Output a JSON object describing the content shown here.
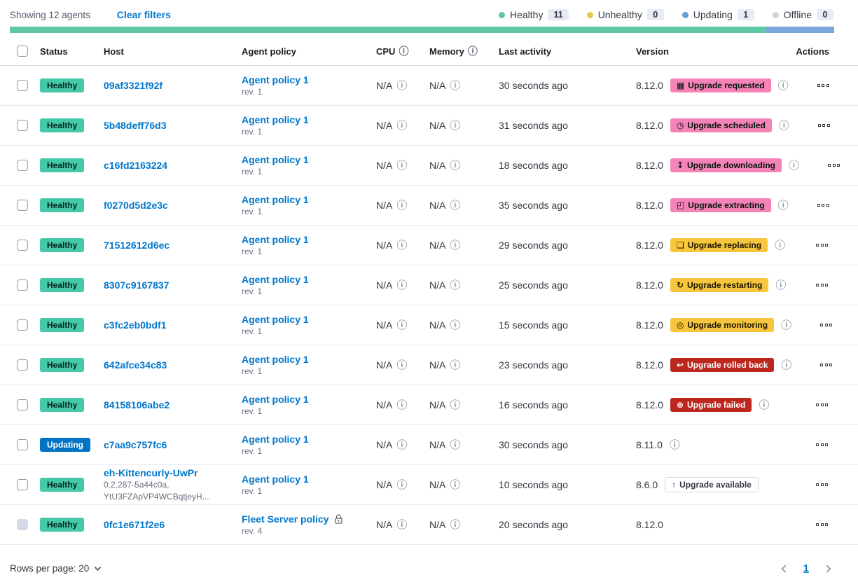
{
  "toolbar": {
    "showing": "Showing 12 agents",
    "clear_filters": "Clear filters"
  },
  "legend": [
    {
      "label": "Healthy",
      "count": "11",
      "color": "#5BC9A4"
    },
    {
      "label": "Unhealthy",
      "count": "0",
      "color": "#E8C84C"
    },
    {
      "label": "Updating",
      "count": "1",
      "color": "#609FD8"
    },
    {
      "label": "Offline",
      "count": "0",
      "color": "#CBD3DF"
    }
  ],
  "health_bar": {
    "segments": [
      {
        "name": "healthy",
        "color": "#5EC9A4",
        "fraction": 0.9167
      },
      {
        "name": "updating",
        "color": "#79A8D8",
        "fraction": 0.0833
      }
    ]
  },
  "table": {
    "headers": [
      {
        "label": "Status"
      },
      {
        "label": "Host"
      },
      {
        "label": "Agent policy"
      },
      {
        "label": "CPU",
        "info": true
      },
      {
        "label": "Memory",
        "info": true
      },
      {
        "label": "Last activity"
      },
      {
        "label": "Version"
      },
      {
        "label": "Actions",
        "align": "right"
      }
    ],
    "rows": [
      {
        "status": {
          "label": "Healthy",
          "color": "success"
        },
        "host": {
          "name": "09af3321f92f",
          "sub": []
        },
        "policy": {
          "name": "Agent policy 1",
          "rev": "rev. 1",
          "locked": false
        },
        "cpu": "N/A",
        "memory": "N/A",
        "last_activity": "30 seconds ago",
        "version": "8.12.0",
        "upgrade_badge": {
          "label": "Upgrade requested",
          "color": "accent",
          "icon": "calendar-icon"
        },
        "version_info": true,
        "checkbox_disabled": false
      },
      {
        "status": {
          "label": "Healthy",
          "color": "success"
        },
        "host": {
          "name": "5b48deff76d3",
          "sub": []
        },
        "policy": {
          "name": "Agent policy 1",
          "rev": "rev. 1",
          "locked": false
        },
        "cpu": "N/A",
        "memory": "N/A",
        "last_activity": "31 seconds ago",
        "version": "8.12.0",
        "upgrade_badge": {
          "label": "Upgrade scheduled",
          "color": "accent",
          "icon": "clock-icon"
        },
        "version_info": true,
        "checkbox_disabled": false
      },
      {
        "status": {
          "label": "Healthy",
          "color": "success"
        },
        "host": {
          "name": "c16fd2163224",
          "sub": []
        },
        "policy": {
          "name": "Agent policy 1",
          "rev": "rev. 1",
          "locked": false
        },
        "cpu": "N/A",
        "memory": "N/A",
        "last_activity": "18 seconds ago",
        "version": "8.12.0",
        "upgrade_badge": {
          "label": "Upgrade downloading",
          "color": "accent",
          "icon": "download-icon"
        },
        "version_info": true,
        "checkbox_disabled": false
      },
      {
        "status": {
          "label": "Healthy",
          "color": "success"
        },
        "host": {
          "name": "f0270d5d2e3c",
          "sub": []
        },
        "policy": {
          "name": "Agent policy 1",
          "rev": "rev. 1",
          "locked": false
        },
        "cpu": "N/A",
        "memory": "N/A",
        "last_activity": "35 seconds ago",
        "version": "8.12.0",
        "upgrade_badge": {
          "label": "Upgrade extracting",
          "color": "accent",
          "icon": "package-icon"
        },
        "version_info": true,
        "checkbox_disabled": false
      },
      {
        "status": {
          "label": "Healthy",
          "color": "success"
        },
        "host": {
          "name": "71512612d6ec",
          "sub": []
        },
        "policy": {
          "name": "Agent policy 1",
          "rev": "rev. 1",
          "locked": false
        },
        "cpu": "N/A",
        "memory": "N/A",
        "last_activity": "29 seconds ago",
        "version": "8.12.0",
        "upgrade_badge": {
          "label": "Upgrade replacing",
          "color": "warning",
          "icon": "copy-icon"
        },
        "version_info": true,
        "checkbox_disabled": false
      },
      {
        "status": {
          "label": "Healthy",
          "color": "success"
        },
        "host": {
          "name": "8307c9167837",
          "sub": []
        },
        "policy": {
          "name": "Agent policy 1",
          "rev": "rev. 1",
          "locked": false
        },
        "cpu": "N/A",
        "memory": "N/A",
        "last_activity": "25 seconds ago",
        "version": "8.12.0",
        "upgrade_badge": {
          "label": "Upgrade restarting",
          "color": "warning",
          "icon": "refresh-icon"
        },
        "version_info": true,
        "checkbox_disabled": false
      },
      {
        "status": {
          "label": "Healthy",
          "color": "success"
        },
        "host": {
          "name": "c3fc2eb0bdf1",
          "sub": []
        },
        "policy": {
          "name": "Agent policy 1",
          "rev": "rev. 1",
          "locked": false
        },
        "cpu": "N/A",
        "memory": "N/A",
        "last_activity": "15 seconds ago",
        "version": "8.12.0",
        "upgrade_badge": {
          "label": "Upgrade monitoring",
          "color": "warning",
          "icon": "inspect-icon"
        },
        "version_info": true,
        "checkbox_disabled": false
      },
      {
        "status": {
          "label": "Healthy",
          "color": "success"
        },
        "host": {
          "name": "642afce34c83",
          "sub": []
        },
        "policy": {
          "name": "Agent policy 1",
          "rev": "rev. 1",
          "locked": false
        },
        "cpu": "N/A",
        "memory": "N/A",
        "last_activity": "23 seconds ago",
        "version": "8.12.0",
        "upgrade_badge": {
          "label": "Upgrade rolled back",
          "color": "danger",
          "icon": "return-icon"
        },
        "version_info": true,
        "checkbox_disabled": false
      },
      {
        "status": {
          "label": "Healthy",
          "color": "success"
        },
        "host": {
          "name": "84158106abe2",
          "sub": []
        },
        "policy": {
          "name": "Agent policy 1",
          "rev": "rev. 1",
          "locked": false
        },
        "cpu": "N/A",
        "memory": "N/A",
        "last_activity": "16 seconds ago",
        "version": "8.12.0",
        "upgrade_badge": {
          "label": "Upgrade failed",
          "color": "danger",
          "icon": "error-icon"
        },
        "version_info": true,
        "checkbox_disabled": false
      },
      {
        "status": {
          "label": "Updating",
          "color": "primary"
        },
        "host": {
          "name": "c7aa9c757fc6",
          "sub": []
        },
        "policy": {
          "name": "Agent policy 1",
          "rev": "rev. 1",
          "locked": false
        },
        "cpu": "N/A",
        "memory": "N/A",
        "last_activity": "30 seconds ago",
        "version": "8.11.0",
        "upgrade_badge": null,
        "version_info": true,
        "checkbox_disabled": false
      },
      {
        "status": {
          "label": "Healthy",
          "color": "success"
        },
        "host": {
          "name": "eh-Kittencurly-UwPr",
          "sub": [
            "0.2.287-5a44c0a,",
            "YtU3FZApVP4WCBqtjeyH..."
          ]
        },
        "policy": {
          "name": "Agent policy 1",
          "rev": "rev. 1",
          "locked": false
        },
        "cpu": "N/A",
        "memory": "N/A",
        "last_activity": "10 seconds ago",
        "version": "8.6.0",
        "upgrade_badge": {
          "label": "Upgrade available",
          "color": "hollow",
          "icon": "arrow-up-icon"
        },
        "version_info": false,
        "checkbox_disabled": false
      },
      {
        "status": {
          "label": "Healthy",
          "color": "success"
        },
        "host": {
          "name": "0fc1e671f2e6",
          "sub": []
        },
        "policy": {
          "name": "Fleet Server policy",
          "rev": "rev. 4",
          "locked": true
        },
        "cpu": "N/A",
        "memory": "N/A",
        "last_activity": "20 seconds ago",
        "version": "8.12.0",
        "upgrade_badge": null,
        "version_info": false,
        "checkbox_disabled": true
      }
    ]
  },
  "pagination": {
    "rows_per_page": "Rows per page: 20",
    "page": "1"
  },
  "colors": {
    "link": "#0077CC",
    "badge_accent": "#F583B7",
    "badge_warning": "#F8C63C",
    "badge_danger": "#BD271E",
    "badge_success": "#45C9A9",
    "badge_primary": "#0073C4"
  }
}
